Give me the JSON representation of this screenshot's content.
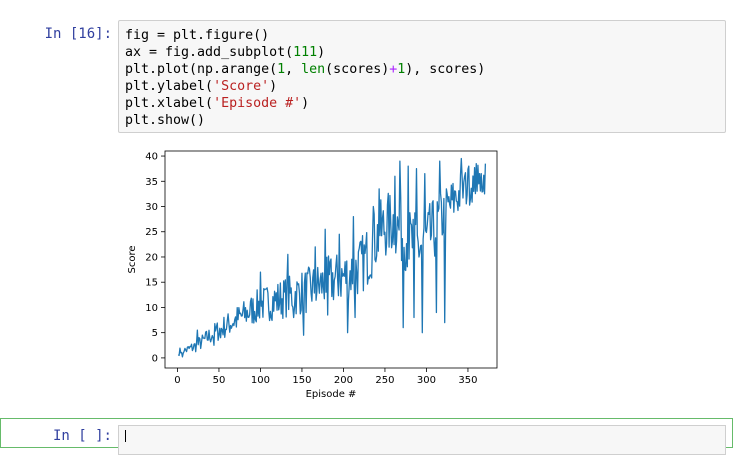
{
  "cell_16": {
    "prompt": "In [16]:",
    "code_lines": [
      [
        {
          "t": "fig = plt.figure()",
          "c": ""
        }
      ],
      [
        {
          "t": "ax = fig.add_subplot(",
          "c": ""
        },
        {
          "t": "111",
          "c": "kw-green"
        },
        {
          "t": ")",
          "c": ""
        }
      ],
      [
        {
          "t": "plt.plot(np.arange(",
          "c": ""
        },
        {
          "t": "1",
          "c": "kw-green"
        },
        {
          "t": ", ",
          "c": ""
        },
        {
          "t": "len",
          "c": "kw-green"
        },
        {
          "t": "(scores)",
          "c": ""
        },
        {
          "t": "+",
          "c": "op"
        },
        {
          "t": "1",
          "c": "kw-green"
        },
        {
          "t": "), scores)",
          "c": ""
        }
      ],
      [
        {
          "t": "plt.ylabel(",
          "c": ""
        },
        {
          "t": "'Score'",
          "c": "str"
        },
        {
          "t": ")",
          "c": ""
        }
      ],
      [
        {
          "t": "plt.xlabel(",
          "c": ""
        },
        {
          "t": "'Episode #'",
          "c": "str"
        },
        {
          "t": ")",
          "c": ""
        }
      ],
      [
        {
          "t": "plt.show()",
          "c": ""
        }
      ]
    ]
  },
  "next_cell": {
    "prompt": "In [ ]:"
  },
  "chart_data": {
    "type": "line",
    "xlabel": "Episode #",
    "ylabel": "Score",
    "xlim": [
      -15,
      385
    ],
    "ylim": [
      -2,
      41
    ],
    "xticks": [
      0,
      50,
      100,
      150,
      200,
      250,
      300,
      350
    ],
    "yticks": [
      0,
      5,
      10,
      15,
      20,
      25,
      30,
      35,
      40
    ],
    "series_color": "#1f77b4",
    "anchors": [
      [
        1,
        1.3
      ],
      [
        10,
        1.5
      ],
      [
        20,
        2.2
      ],
      [
        30,
        3.2
      ],
      [
        40,
        4.5
      ],
      [
        50,
        5.5
      ],
      [
        60,
        6.5
      ],
      [
        70,
        7.5
      ],
      [
        80,
        8.5
      ],
      [
        90,
        9.5
      ],
      [
        100,
        10.5
      ],
      [
        110,
        11.0
      ],
      [
        120,
        11.5
      ],
      [
        130,
        12.0
      ],
      [
        140,
        12.5
      ],
      [
        150,
        13.0
      ],
      [
        160,
        13.5
      ],
      [
        170,
        14.2
      ],
      [
        180,
        15.0
      ],
      [
        190,
        15.5
      ],
      [
        200,
        16.0
      ],
      [
        210,
        17.0
      ],
      [
        220,
        18.0
      ],
      [
        230,
        20.5
      ],
      [
        240,
        24.0
      ],
      [
        250,
        26.0
      ],
      [
        260,
        27.0
      ],
      [
        270,
        25.0
      ],
      [
        280,
        23.0
      ],
      [
        290,
        22.0
      ],
      [
        300,
        23.0
      ],
      [
        310,
        25.5
      ],
      [
        320,
        28.0
      ],
      [
        330,
        30.5
      ],
      [
        340,
        32.5
      ],
      [
        350,
        34.0
      ],
      [
        360,
        35.0
      ],
      [
        371,
        35.5
      ]
    ],
    "noise_envelope": [
      [
        0,
        0.6
      ],
      [
        50,
        2.2
      ],
      [
        100,
        3.5
      ],
      [
        150,
        4.5
      ],
      [
        200,
        5.5
      ],
      [
        250,
        6.5
      ],
      [
        300,
        7.0
      ],
      [
        330,
        5.0
      ],
      [
        371,
        3.0
      ]
    ],
    "spikes": [
      [
        2,
        0.5
      ],
      [
        4,
        1.0
      ],
      [
        6,
        0.2
      ],
      [
        8,
        1.3
      ],
      [
        24,
        5.5
      ],
      [
        44,
        2.5
      ],
      [
        52,
        4.0
      ],
      [
        100,
        17.0
      ],
      [
        133,
        20.5
      ],
      [
        140,
        8.0
      ],
      [
        152,
        4.5
      ],
      [
        166,
        22.0
      ],
      [
        178,
        25.5
      ],
      [
        181,
        8.5
      ],
      [
        195,
        24.5
      ],
      [
        205,
        5.0
      ],
      [
        212,
        28.0
      ],
      [
        214,
        8.0
      ],
      [
        236,
        30.0
      ],
      [
        243,
        33.5
      ],
      [
        262,
        36.0
      ],
      [
        268,
        39.0
      ],
      [
        272,
        6.0
      ],
      [
        278,
        38.0
      ],
      [
        285,
        8.0
      ],
      [
        288,
        37.5
      ],
      [
        295,
        5.0
      ],
      [
        298,
        36.5
      ],
      [
        312,
        9.0
      ],
      [
        316,
        39.0
      ],
      [
        322,
        7.0
      ],
      [
        335,
        33.0
      ],
      [
        342,
        39.5
      ],
      [
        346,
        36.0
      ],
      [
        351,
        38.0
      ],
      [
        357,
        33.0
      ],
      [
        360,
        38.5
      ],
      [
        363,
        34.5
      ],
      [
        366,
        36.5
      ],
      [
        368,
        33.0
      ],
      [
        371,
        38.5
      ]
    ],
    "n_points": 371
  }
}
